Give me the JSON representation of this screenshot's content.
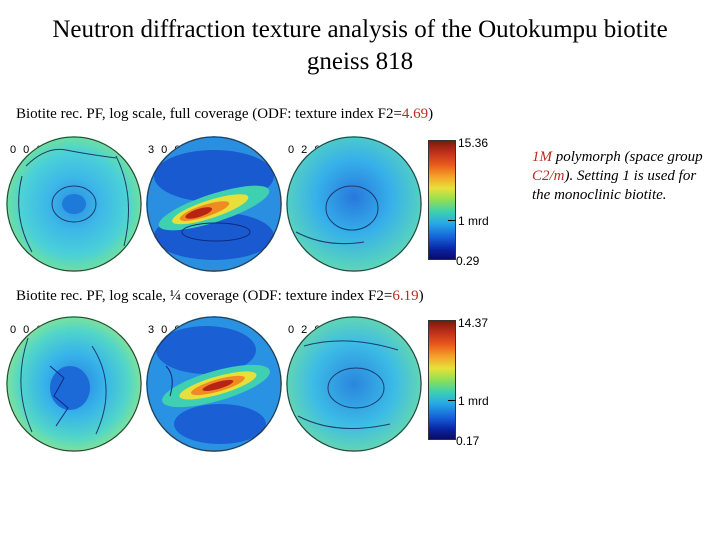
{
  "title": "Neutron diffraction texture analysis of the Outokumpu biotite gneiss 818",
  "row1": {
    "caption_prefix": "Biotite rec. PF, log scale, full coverage (ODF: texture index F2=",
    "f2": "4.69",
    "caption_suffix": ")",
    "labels": [
      "0 0 2",
      "3 0 0",
      "0 2 0"
    ],
    "scale": {
      "max": "15.36",
      "mid": "1 mrd",
      "min": "0.29"
    }
  },
  "row2": {
    "caption_prefix": "Biotite rec. PF, log scale, ¼ coverage (ODF: texture index F2=",
    "f2": "6.19",
    "caption_suffix": ")",
    "labels": [
      "0 0 2",
      "3 0 0",
      "0 2 0"
    ],
    "scale": {
      "max": "14.37",
      "mid": "1 mrd",
      "min": "0.17"
    }
  },
  "note": {
    "polymorph": "1M",
    "line1_rest": " polymorph (space group ",
    "group": "C2/m",
    "line2_rest": "). Setting 1 is used for the monoclinic biotite."
  },
  "colors": {
    "accent": "#b03020",
    "low": "#1460d8",
    "mid": "#3ec8e0",
    "high": "#c0321a"
  }
}
